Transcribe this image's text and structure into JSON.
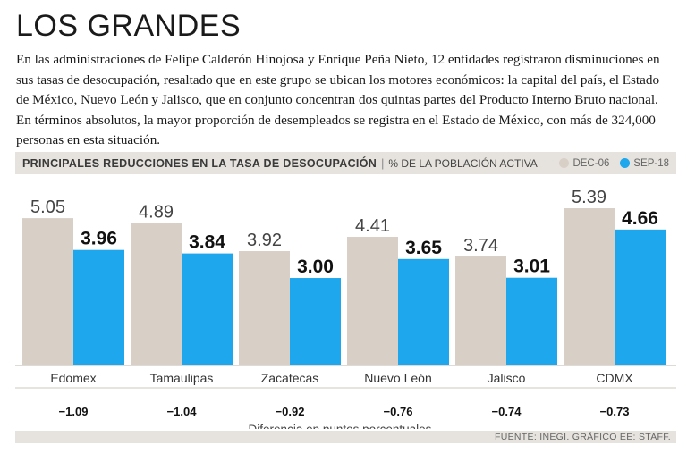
{
  "headline": "LOS GRANDES",
  "intro": "En las administraciones de Felipe Calderón Hinojosa y Enrique Peña Nieto, 12 entidades registraron disminuciones en sus tasas de desocupación, resaltado que en este grupo se ubican los motores económicos: la capital del país, el Estado de México, Nuevo León y Jalisco, que en conjunto concentran dos quintas partes del Producto Interno Bruto nacional. En términos absolutos, la mayor proporción de desempleados se registra en el Estado de México, con más de 324,000 personas en esta situación.",
  "chart_header": {
    "title": "PRINCIPALES REDUCCIONES EN LA TASA DE DESOCUPACIÓN",
    "separator": "|",
    "units": "% DE LA POBLACIÓN ACTIVA"
  },
  "colors": {
    "dec06": "#d8d0c7",
    "sep18": "#1ea7ec"
  },
  "chart_data": {
    "type": "bar",
    "title": "PRINCIPALES REDUCCIONES EN LA TASA DE DESOCUPACIÓN",
    "ylabel": "% DE LA POBLACIÓN ACTIVA",
    "categories": [
      "Edomex",
      "Tamaulipas",
      "Zacatecas",
      "Nuevo León",
      "Jalisco",
      "CDMX"
    ],
    "series": [
      {
        "name": "DEC-06",
        "values": [
          5.05,
          4.89,
          3.92,
          4.41,
          3.74,
          5.39
        ],
        "labels": [
          "5.05",
          "4.89",
          "3.92",
          "4.41",
          "3.74",
          "5.39"
        ]
      },
      {
        "name": "SEP-18",
        "values": [
          3.96,
          3.84,
          3.0,
          3.65,
          3.01,
          4.66
        ],
        "labels": [
          "3.96",
          "3.84",
          "3.00",
          "3.65",
          "3.01",
          "4.66"
        ]
      }
    ],
    "differences": [
      "−1.09",
      "−1.04",
      "−0.92",
      "−0.76",
      "−0.74",
      "−0.73"
    ],
    "differences_caption": "Diferencia en puntos porcentuales",
    "ylim": [
      0,
      5.39
    ]
  },
  "footer": "FUENTE: INEGI. GRÁFICO EE: STAFF."
}
